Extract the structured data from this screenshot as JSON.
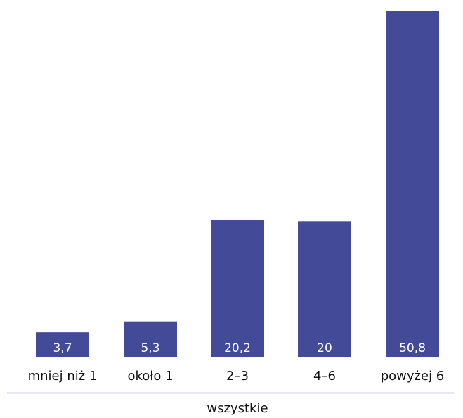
{
  "chart_data": {
    "type": "bar",
    "categories": [
      "mniej niż 1",
      "około 1",
      "2–3",
      "4–6",
      "powyżej 6"
    ],
    "values": [
      3.7,
      5.3,
      20.2,
      20,
      50.8
    ],
    "value_labels": [
      "3,7",
      "5,3",
      "20,2",
      "20",
      "50,8"
    ],
    "group_label": "wszystkie",
    "title": "",
    "xlabel": "",
    "ylabel": "",
    "ylim": [
      0,
      50.8
    ],
    "grid": false,
    "legend": "none",
    "bar_color": "#434a97",
    "axis_line_color": "#434a97"
  }
}
